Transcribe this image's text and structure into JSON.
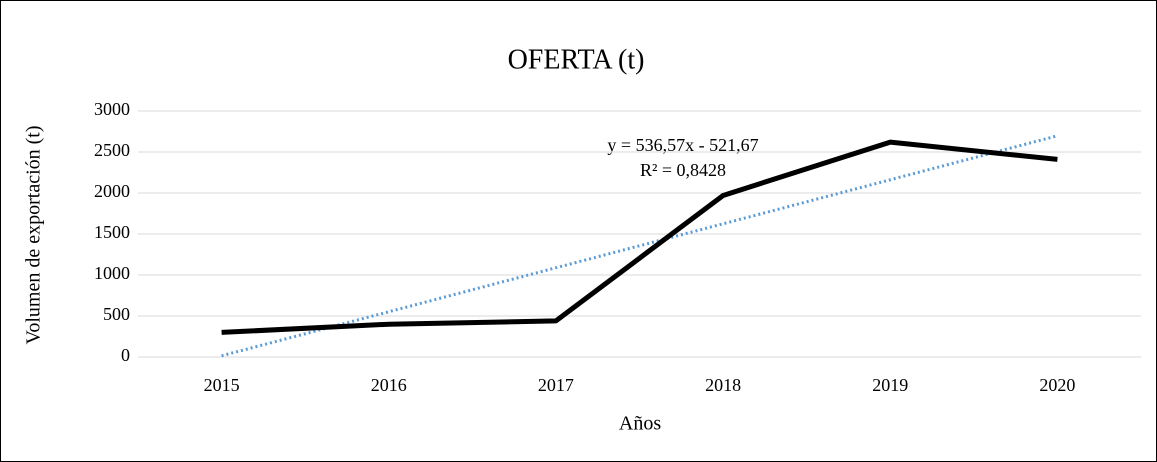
{
  "chart_data": {
    "type": "line",
    "title": "OFERTA (t)",
    "xlabel": "Años",
    "ylabel": "Volumen de exportación (t)",
    "categories": [
      "2015",
      "2016",
      "2017",
      "2018",
      "2019",
      "2020"
    ],
    "series": [
      {
        "name": "OFERTA (t)",
        "color": "#000000",
        "values": [
          300,
          400,
          440,
          1970,
          2620,
          2410
        ]
      }
    ],
    "trendline": {
      "type": "linear",
      "color": "#5b9bd5",
      "slope": 536.57,
      "intercept": -521.67,
      "equation": "y = 536,57x - 521,67",
      "r2": "R² = 0,8428"
    },
    "ylim": [
      0,
      3000
    ],
    "yticks": [
      0,
      500,
      1000,
      1500,
      2000,
      2500,
      3000
    ],
    "grid": true,
    "legend": false
  }
}
